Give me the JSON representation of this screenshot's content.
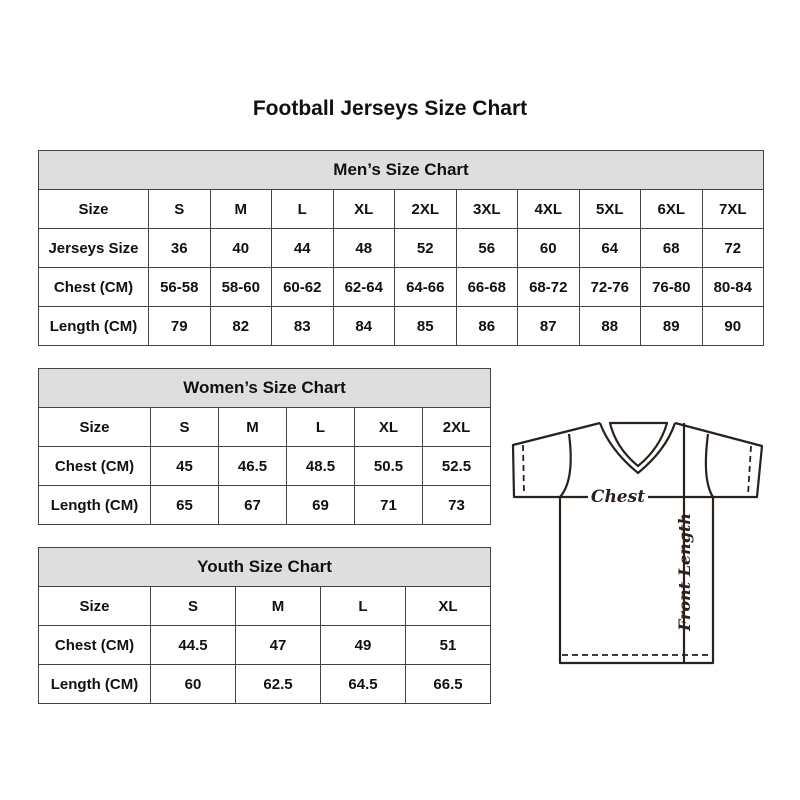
{
  "title": "Football Jerseys Size Chart",
  "men": {
    "heading": "Men’s Size Chart",
    "rows": [
      {
        "label": "Size",
        "values": [
          "S",
          "M",
          "L",
          "XL",
          "2XL",
          "3XL",
          "4XL",
          "5XL",
          "6XL",
          "7XL"
        ]
      },
      {
        "label": "Jerseys Size",
        "values": [
          "36",
          "40",
          "44",
          "48",
          "52",
          "56",
          "60",
          "64",
          "68",
          "72"
        ]
      },
      {
        "label": "Chest (CM)",
        "values": [
          "56-58",
          "58-60",
          "60-62",
          "62-64",
          "64-66",
          "66-68",
          "68-72",
          "72-76",
          "76-80",
          "80-84"
        ]
      },
      {
        "label": "Length (CM)",
        "values": [
          "79",
          "82",
          "83",
          "84",
          "85",
          "86",
          "87",
          "88",
          "89",
          "90"
        ]
      }
    ]
  },
  "women": {
    "heading": "Women’s Size Chart",
    "rows": [
      {
        "label": "Size",
        "values": [
          "S",
          "M",
          "L",
          "XL",
          "2XL"
        ]
      },
      {
        "label": "Chest (CM)",
        "values": [
          "45",
          "46.5",
          "48.5",
          "50.5",
          "52.5"
        ]
      },
      {
        "label": "Length (CM)",
        "values": [
          "65",
          "67",
          "69",
          "71",
          "73"
        ]
      }
    ]
  },
  "youth": {
    "heading": "Youth Size Chart",
    "rows": [
      {
        "label": "Size",
        "values": [
          "S",
          "M",
          "L",
          "XL"
        ]
      },
      {
        "label": "Chest (CM)",
        "values": [
          "44.5",
          "47",
          "49",
          "51"
        ]
      },
      {
        "label": "Length (CM)",
        "values": [
          "60",
          "62.5",
          "64.5",
          "66.5"
        ]
      }
    ]
  },
  "diagram": {
    "chest_label": "Chest",
    "length_label": "Front Length"
  },
  "colors": {
    "header_bg": "#dedede",
    "border": "#444444",
    "line": "#2a201c"
  }
}
